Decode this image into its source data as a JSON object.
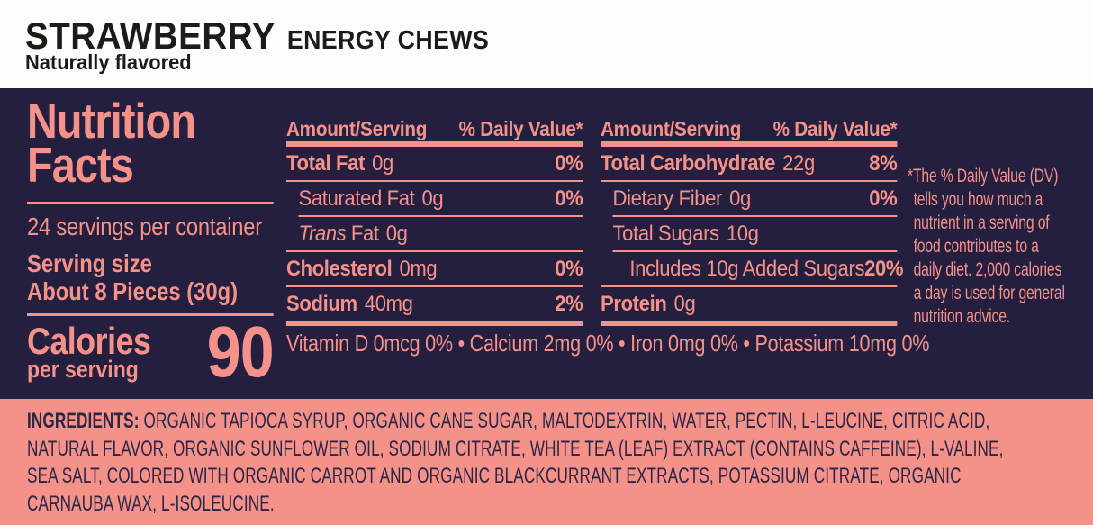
{
  "product": {
    "name": "STRAWBERRY",
    "type": "ENERGY CHEWS",
    "tagline": "Naturally flavored"
  },
  "nutrition": {
    "title_line1": "Nutrition",
    "title_line2": "Facts",
    "servings_per_container": "24 servings per container",
    "serving_size_label": "Serving size",
    "serving_size_value": "About 8 Pieces (30g)",
    "calories_label": "Calories",
    "calories_sublabel": "per serving",
    "calories_value": "90",
    "amount_header": "Amount/Serving",
    "dv_header": "% Daily Value*",
    "left_rows": {
      "total_fat": {
        "name": "Total Fat",
        "amount": "0g",
        "dv": "0%"
      },
      "saturated_fat": {
        "name": "Saturated Fat",
        "amount": "0g",
        "dv": "0%"
      },
      "trans_fat": {
        "name_italic": "Trans",
        "name_rest": "Fat",
        "amount": "0g"
      },
      "cholesterol": {
        "name": "Cholesterol",
        "amount": "0mg",
        "dv": "0%"
      },
      "sodium": {
        "name": "Sodium",
        "amount": "40mg",
        "dv": "2%"
      }
    },
    "right_rows": {
      "total_carbohydrate": {
        "name": "Total Carbohydrate",
        "amount": "22g",
        "dv": "8%"
      },
      "dietary_fiber": {
        "name": "Dietary Fiber",
        "amount": "0g",
        "dv": "0%"
      },
      "total_sugars": {
        "name": "Total Sugars",
        "amount": "10g"
      },
      "added_sugars": {
        "name": "Includes 10g Added Sugars",
        "dv": "20%"
      },
      "protein": {
        "name": "Protein",
        "amount": "0g"
      }
    },
    "micronutrients": "Vitamin D 0mcg 0% • Calcium 2mg 0% • Iron 0mg 0% • Potassium 10mg 0%",
    "dv_footnote": "*The % Daily Value (DV)\ntells you how much a\nnutrient in a serving of\nfood contributes to a\ndaily diet. 2,000 calories\na day is used for general\nnutrition advice."
  },
  "ingredients": {
    "label": "INGREDIENTS:",
    "text": " ORGANIC TAPIOCA SYRUP, ORGANIC CANE SUGAR, MALTODEXTRIN, WATER, PECTIN, L-LEUCINE, CITRIC ACID, NATURAL FLAVOR, ORGANIC SUNFLOWER OIL, SODIUM CITRATE, WHITE TEA (LEAF) EXTRACT (CONTAINS CAFFEINE), L-VALINE, SEA SALT, COLORED WITH ORGANIC CARROT AND ORGANIC BLACKCURRANT EXTRACTS, POTASSIUM CITRATE, ORGANIC CARNAUBA WAX, L-ISOLEUCINE."
  },
  "colors": {
    "panel_bg": "#241e3f",
    "accent_salmon": "#f4928a",
    "ingredients_bg": "#f4928a",
    "ingredients_text": "#2b2546",
    "header_text": "#1b1b1b",
    "page_bg": "#fdfdf9"
  }
}
